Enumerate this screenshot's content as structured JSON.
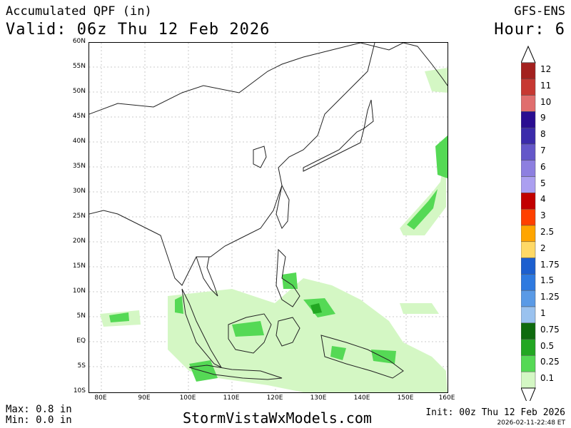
{
  "header": {
    "title": "Accumulated QPF (in)",
    "valid": "Valid: 06z Thu 12 Feb 2026",
    "model": "GFS-ENS",
    "hour": "Hour: 6"
  },
  "axes": {
    "lat_labels": [
      "60N",
      "55N",
      "50N",
      "45N",
      "40N",
      "35N",
      "30N",
      "25N",
      "20N",
      "15N",
      "10N",
      "5N",
      "EQ",
      "5S",
      "10S"
    ],
    "lon_labels": [
      "80E",
      "90E",
      "100E",
      "110E",
      "120E",
      "130E",
      "140E",
      "150E",
      "160E"
    ]
  },
  "legend": {
    "labels": [
      "12",
      "11",
      "10",
      "9",
      "8",
      "7",
      "6",
      "5",
      "4",
      "3",
      "2.5",
      "2",
      "1.75",
      "1.5",
      "1.25",
      "1",
      "0.75",
      "0.5",
      "0.25",
      "0.1"
    ],
    "colors": [
      "#a3201e",
      "#c73832",
      "#e06e6e",
      "#2a0d91",
      "#3b2bab",
      "#6457c9",
      "#8d7fe0",
      "#ab9ff0",
      "#c20000",
      "#ff4000",
      "#ffa500",
      "#ffd966",
      "#1c5fcf",
      "#2e7ae0",
      "#5a9ae6",
      "#9ac2ef",
      "#0f6b0f",
      "#22a722",
      "#55d955",
      "#d4f7c4"
    ]
  },
  "footer": {
    "max": "Max: 0.8 in",
    "min": "Min: 0.0 in",
    "site": "StormVistaWxModels.com",
    "init": "Init: 00z Thu 12 Feb 2026",
    "stamp": "2026-02-11-22:48 ET"
  }
}
